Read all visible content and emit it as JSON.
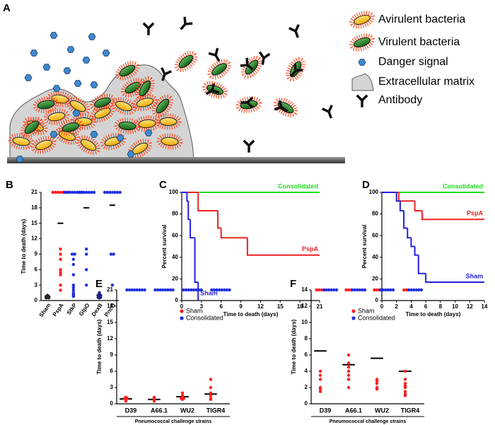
{
  "panel_a": {
    "label": "A",
    "legend": [
      "Avirulent bacteria",
      "Virulent bacteria",
      "Danger signal",
      "Extracellular matrix",
      "Antibody"
    ]
  },
  "chart_data": [
    {
      "type": "strip",
      "label": "B",
      "ylabel": "Time to death (days)",
      "categories": [
        "Sham",
        "PspA",
        "StkP",
        "GlpO",
        "DexB",
        "PncO"
      ],
      "colors": [
        "#222222",
        "#ff1f1f",
        "#1f2fe0",
        "#1f2fe0",
        "#1a237e",
        "#1f2fe0"
      ],
      "values": [
        [
          0.5,
          0.6,
          0.7,
          0.8,
          0.9,
          0.6,
          0.8,
          1,
          0.5,
          0.7
        ],
        [
          21,
          21,
          21,
          21,
          21,
          21,
          21,
          10,
          9,
          8,
          6,
          5.5,
          5,
          3,
          2
        ],
        [
          21,
          21,
          21,
          21,
          21,
          21,
          21,
          21,
          9,
          9,
          8,
          7,
          5,
          3,
          2.5,
          2,
          1.5,
          1.2,
          1,
          0.8
        ],
        [
          21,
          21,
          21,
          21,
          21,
          21,
          21,
          10,
          9,
          6,
          3
        ],
        [
          0.5,
          0.6,
          0.8,
          1,
          1.2,
          0.7,
          0.9,
          1.5,
          0.6,
          1
        ],
        [
          21,
          21,
          21,
          21,
          21,
          21,
          21,
          9,
          9,
          3
        ]
      ],
      "means": [
        0.7,
        15,
        9,
        18,
        1,
        18.5
      ],
      "ylim": [
        0,
        21
      ],
      "yticks": [
        0,
        3,
        6,
        9,
        12,
        15,
        18,
        21
      ]
    },
    {
      "type": "survival",
      "label": "C",
      "xlabel": "Time to death (days)",
      "ylabel": "Percent survival",
      "series": [
        {
          "name": "Consolidated",
          "color": "#22dd22",
          "x": [
            0,
            21
          ],
          "values": [
            100,
            100
          ]
        },
        {
          "name": "PspA",
          "color": "#ee2222",
          "x": [
            0,
            2.5,
            5.5,
            6,
            10,
            21
          ],
          "values": [
            100,
            83,
            67,
            58,
            42,
            42
          ]
        },
        {
          "name": "Sham",
          "color": "#2222dd",
          "x": [
            0,
            0.8,
            1,
            1.3,
            2,
            2.5
          ],
          "values": [
            100,
            92,
            75,
            58,
            17,
            0
          ]
        }
      ],
      "xlim": [
        0,
        21
      ],
      "xticks": [
        0,
        3,
        6,
        9,
        12,
        15,
        18,
        21
      ],
      "ylim": [
        0,
        100
      ],
      "yticks": [
        0,
        20,
        40,
        60,
        80,
        100
      ]
    },
    {
      "type": "survival",
      "label": "D",
      "xlabel": "Time to death (days)",
      "ylabel": "Percent survival",
      "series": [
        {
          "name": "Consolidated",
          "color": "#22dd22",
          "x": [
            0,
            14
          ],
          "values": [
            100,
            100
          ]
        },
        {
          "name": "PspA",
          "color": "#ee2222",
          "x": [
            0,
            2.3,
            4.5,
            5.5,
            14
          ],
          "values": [
            100,
            92,
            83,
            75,
            75
          ]
        },
        {
          "name": "Sham",
          "color": "#2222dd",
          "x": [
            0,
            2,
            2.5,
            3,
            3.5,
            4,
            4.5,
            5,
            6,
            14
          ],
          "values": [
            100,
            92,
            83,
            67,
            58,
            50,
            42,
            25,
            17,
            17
          ]
        }
      ],
      "xlim": [
        0,
        14
      ],
      "xticks": [
        0,
        2,
        4,
        6,
        8,
        10,
        12,
        14
      ],
      "ylim": [
        0,
        100
      ],
      "yticks": [
        0,
        20,
        40,
        60,
        80,
        100
      ]
    },
    {
      "type": "strip",
      "label": "E",
      "xlabel": "Pneumococcal challenge strains",
      "ylabel": "Time to death (days)",
      "categories": [
        "D39",
        "A66.1",
        "WU2",
        "TIGR4"
      ],
      "legend": "upper right",
      "series": [
        {
          "name": "Sham",
          "color": "#ff1f1f",
          "values": [
            [
              0.5,
              0.8,
              1,
              1,
              1.2,
              0.7
            ],
            [
              0.5,
              0.7,
              1,
              0.8,
              1.2
            ],
            [
              1,
              1.5,
              2,
              1.2,
              0.8,
              1
            ],
            [
              1,
              2,
              3,
              4.5,
              0.8,
              1.5
            ]
          ],
          "means": [
            0.9,
            0.8,
            1.3,
            1.8
          ]
        },
        {
          "name": "Consolidated",
          "color": "#1f2fe0",
          "values": [
            [
              21,
              21,
              21,
              21,
              21,
              21,
              21,
              21
            ],
            [
              21,
              21,
              21,
              21,
              21,
              21,
              21,
              21
            ],
            [
              21,
              21,
              21,
              21,
              21,
              21,
              21,
              21
            ],
            [
              21,
              21,
              21,
              21,
              21,
              21,
              21,
              21
            ]
          ],
          "means": [
            21,
            21,
            21,
            21
          ]
        }
      ],
      "ylim": [
        0,
        21
      ],
      "yticks": [
        0,
        3,
        6,
        9,
        12,
        15,
        18,
        21
      ]
    },
    {
      "type": "strip",
      "label": "F",
      "xlabel": "Pneumococcal challenge strains",
      "ylabel": "Time to death (days)",
      "categories": [
        "D39",
        "A66.1",
        "WU2",
        "TIGR4"
      ],
      "legend": "upper center",
      "series": [
        {
          "name": "Sham",
          "color": "#ff1f1f",
          "values": [
            [
              14,
              14,
              14,
              14,
              4,
              3.5,
              3,
              2,
              1.5,
              1.8
            ],
            [
              14,
              14,
              14,
              6,
              5,
              4.5,
              4,
              3.5,
              3,
              2
            ],
            [
              14,
              14,
              14,
              3,
              2.5,
              2,
              1.8,
              2.8
            ],
            [
              14,
              14,
              4,
              3,
              2.5,
              2,
              1.5,
              1.2,
              1,
              2.2
            ]
          ],
          "means": [
            6.5,
            4.8,
            5.6,
            4
          ]
        },
        {
          "name": "Consolidated",
          "color": "#1f2fe0",
          "values": [
            [
              14,
              14,
              14,
              14,
              14,
              14
            ],
            [
              14,
              14,
              14,
              14,
              14,
              14
            ],
            [
              14,
              14,
              14,
              14,
              14,
              14
            ],
            [
              14,
              14,
              14,
              14,
              14,
              14
            ]
          ],
          "means": [
            14,
            14,
            14,
            14
          ]
        }
      ],
      "ylim": [
        0,
        14
      ],
      "yticks": [
        0,
        2,
        4,
        6,
        8,
        10,
        12,
        14
      ]
    }
  ]
}
